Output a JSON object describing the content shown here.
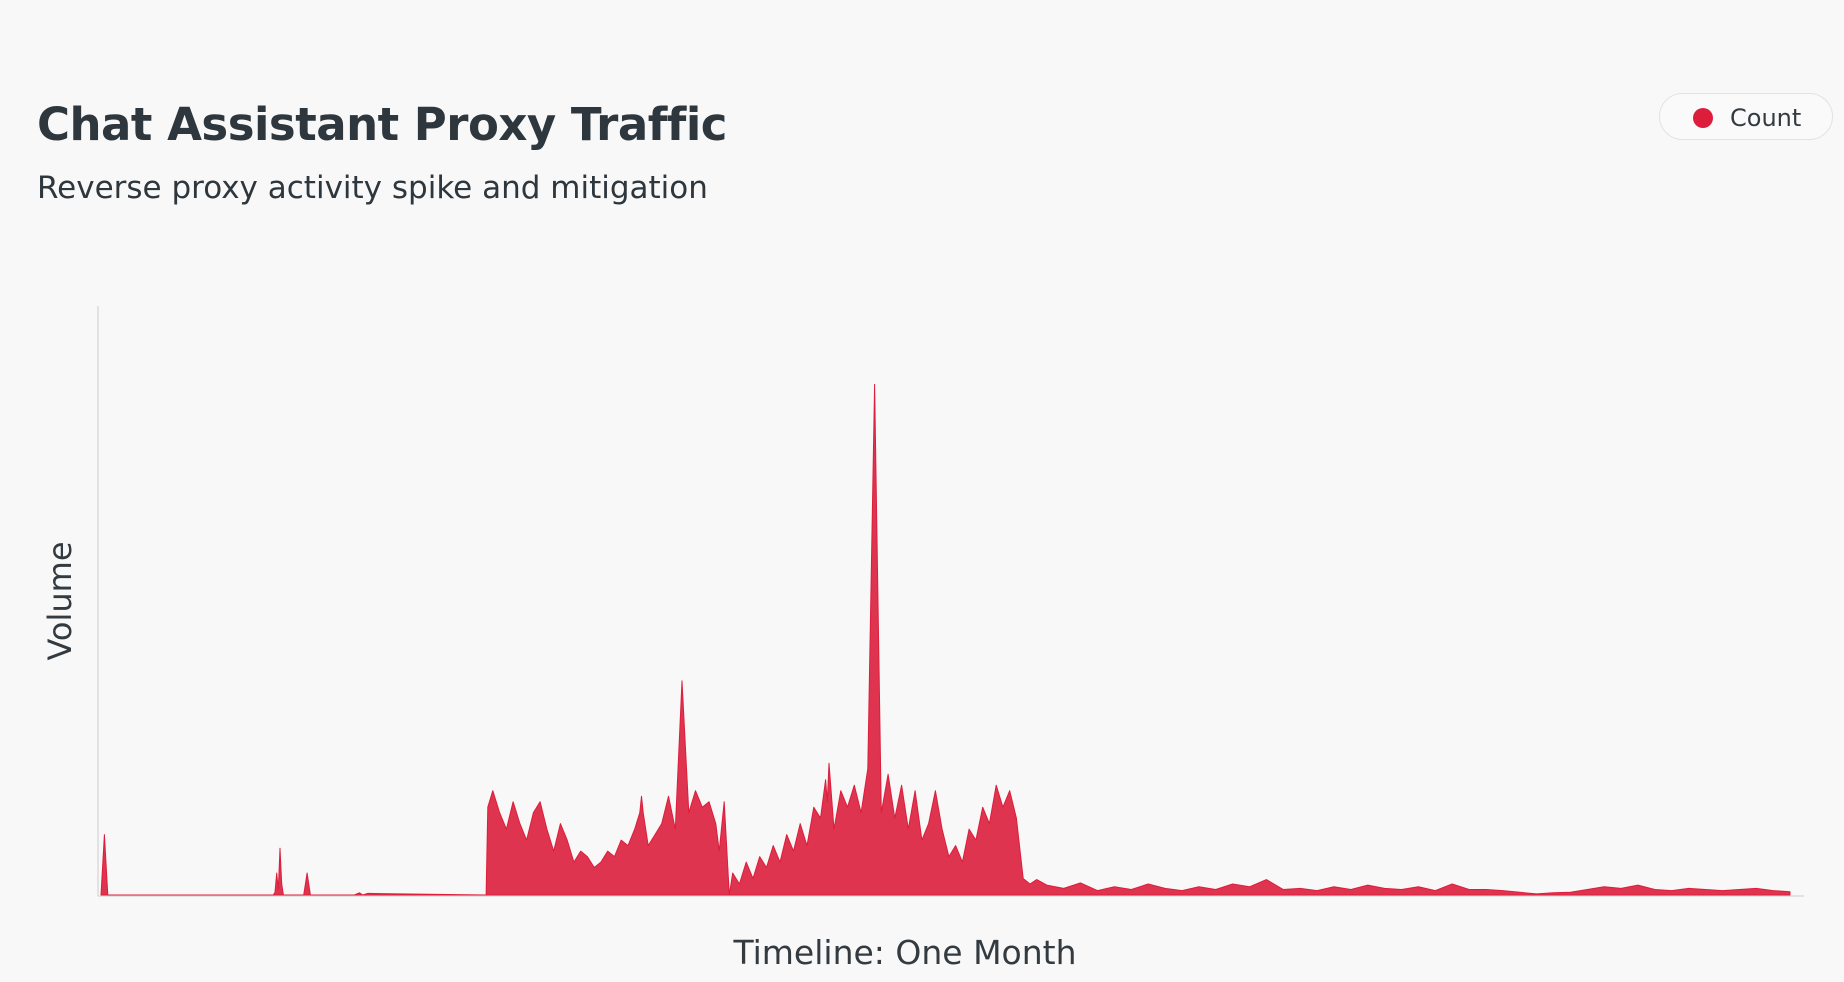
{
  "chart_data": {
    "type": "area",
    "title": "Chat Assistant Proxy Traffic",
    "subtitle": "Reverse proxy activity spike and mitigation",
    "xlabel": "Timeline: One Month",
    "ylabel": "Volume",
    "grid": false,
    "legend_position": "top-right",
    "x_range": [
      0,
      1
    ],
    "y_range": [
      0,
      1
    ],
    "series": [
      {
        "name": "Count",
        "color": "#dc1e3c",
        "x": [
          0,
          0.002,
          0.004,
          0.006,
          0.09,
          0.102,
          0.103,
          0.104,
          0.105,
          0.106,
          0.107,
          0.108,
          0.12,
          0.122,
          0.124,
          0.15,
          0.153,
          0.155,
          0.158,
          0.228,
          0.229,
          0.232,
          0.236,
          0.24,
          0.244,
          0.248,
          0.252,
          0.256,
          0.26,
          0.264,
          0.268,
          0.272,
          0.276,
          0.28,
          0.284,
          0.288,
          0.292,
          0.296,
          0.3,
          0.304,
          0.308,
          0.312,
          0.316,
          0.319,
          0.32,
          0.321,
          0.324,
          0.328,
          0.332,
          0.336,
          0.34,
          0.344,
          0.348,
          0.352,
          0.356,
          0.36,
          0.364,
          0.366,
          0.369,
          0.372,
          0.374,
          0.378,
          0.382,
          0.386,
          0.39,
          0.394,
          0.398,
          0.402,
          0.406,
          0.41,
          0.414,
          0.418,
          0.422,
          0.426,
          0.429,
          0.43,
          0.431,
          0.434,
          0.438,
          0.442,
          0.446,
          0.45,
          0.454,
          0.458,
          0.462,
          0.466,
          0.47,
          0.474,
          0.478,
          0.482,
          0.486,
          0.49,
          0.494,
          0.498,
          0.502,
          0.506,
          0.51,
          0.514,
          0.518,
          0.522,
          0.526,
          0.53,
          0.534,
          0.538,
          0.542,
          0.546,
          0.55,
          0.554,
          0.56,
          0.57,
          0.58,
          0.59,
          0.6,
          0.61,
          0.62,
          0.63,
          0.64,
          0.65,
          0.66,
          0.67,
          0.68,
          0.69,
          0.7,
          0.71,
          0.72,
          0.73,
          0.74,
          0.75,
          0.76,
          0.77,
          0.78,
          0.79,
          0.8,
          0.81,
          0.82,
          0.83,
          0.84,
          0.85,
          0.86,
          0.87,
          0.88,
          0.89,
          0.9,
          0.91,
          0.92,
          0.93,
          0.94,
          0.95,
          0.96,
          0.97,
          0.98,
          0.99,
          1.0
        ],
        "y": [
          0,
          0.11,
          0,
          0,
          0,
          0,
          0.005,
          0.04,
          0.01,
          0.085,
          0.02,
          0,
          0,
          0.04,
          0,
          0,
          0.004,
          0,
          0.003,
          0,
          0.16,
          0.19,
          0.15,
          0.12,
          0.17,
          0.13,
          0.1,
          0.15,
          0.17,
          0.12,
          0.08,
          0.13,
          0.1,
          0.06,
          0.08,
          0.07,
          0.05,
          0.06,
          0.08,
          0.07,
          0.1,
          0.09,
          0.12,
          0.15,
          0.18,
          0.15,
          0.09,
          0.11,
          0.13,
          0.18,
          0.12,
          0.39,
          0.15,
          0.19,
          0.16,
          0.17,
          0.13,
          0.08,
          0.17,
          0,
          0.04,
          0.02,
          0.06,
          0.03,
          0.07,
          0.05,
          0.09,
          0.06,
          0.11,
          0.08,
          0.13,
          0.09,
          0.16,
          0.14,
          0.21,
          0.17,
          0.24,
          0.12,
          0.19,
          0.16,
          0.2,
          0.15,
          0.23,
          0.93,
          0.15,
          0.22,
          0.14,
          0.2,
          0.12,
          0.19,
          0.1,
          0.13,
          0.19,
          0.12,
          0.07,
          0.09,
          0.06,
          0.12,
          0.1,
          0.16,
          0.13,
          0.2,
          0.16,
          0.19,
          0.14,
          0.03,
          0.02,
          0.028,
          0.018,
          0.012,
          0.022,
          0.008,
          0.015,
          0.01,
          0.02,
          0.012,
          0.008,
          0.015,
          0.01,
          0.02,
          0.015,
          0.028,
          0.01,
          0.012,
          0.008,
          0.015,
          0.01,
          0.018,
          0.012,
          0.01,
          0.015,
          0.008,
          0.02,
          0.01,
          0.01,
          0.008,
          0.005,
          0.002,
          0.004,
          0.005,
          0.01,
          0.015,
          0.012,
          0.018,
          0.01,
          0.008,
          0.012,
          0.01,
          0.008,
          0.01,
          0.012,
          0.008,
          0.006
        ]
      }
    ]
  }
}
